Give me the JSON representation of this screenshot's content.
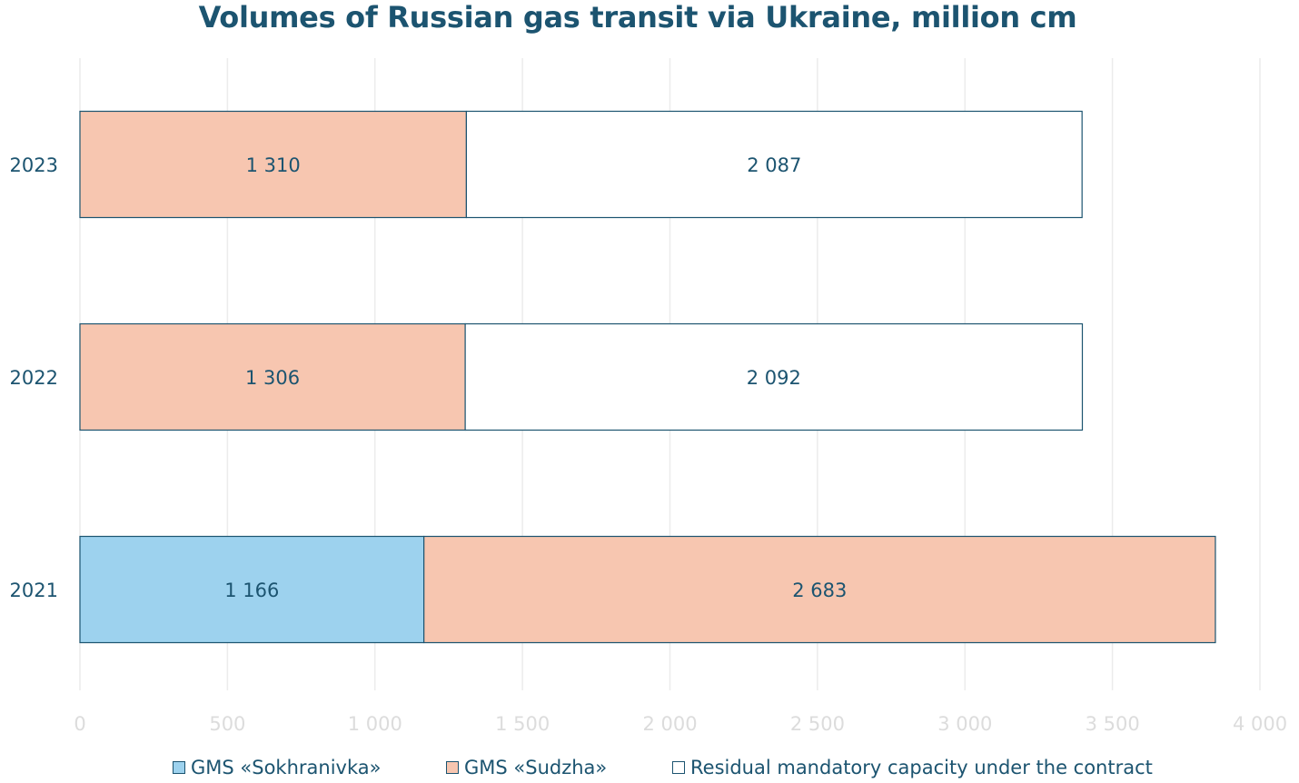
{
  "chart_data": {
    "type": "bar",
    "orientation": "horizontal",
    "stacked": true,
    "title": "Volumes of Russian gas transit via Ukraine, million cm",
    "categories": [
      "2023",
      "2022",
      "2021"
    ],
    "series": [
      {
        "name": "GMS «Sokhranivka»",
        "color": "#9dd2ee",
        "values": [
          0,
          0,
          1166
        ],
        "labels": [
          "",
          "",
          "1 166"
        ]
      },
      {
        "name": "GMS «Sudzha»",
        "color": "#f7c6b0",
        "values": [
          1310,
          1306,
          2683
        ],
        "labels": [
          "1 310",
          "1 306",
          "2 683"
        ]
      },
      {
        "name": "Residual mandatory capacity under the contract",
        "color": "#ffffff",
        "values": [
          2087,
          2092,
          0
        ],
        "labels": [
          "2 087",
          "2 092",
          ""
        ]
      }
    ],
    "xlim": [
      0,
      4000
    ],
    "xticks": [
      0,
      500,
      1000,
      1500,
      2000,
      2500,
      3000,
      3500,
      4000
    ],
    "xtick_labels": [
      "0",
      "500",
      "1 000",
      "1 500",
      "2 000",
      "2 500",
      "3 000",
      "3 500",
      "4 000"
    ],
    "grid": true,
    "legend_position": "bottom"
  },
  "colors": {
    "text": "#1c5470",
    "axis_text": "#dcdcdc",
    "grid": "#ececec",
    "bar_border": "#1c5470"
  }
}
